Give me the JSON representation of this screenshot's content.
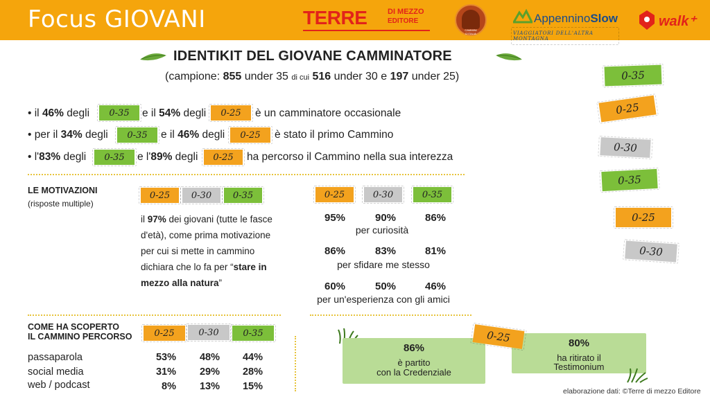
{
  "header": {
    "title": "Focus GIOVANI",
    "logos": {
      "terre": {
        "big": "TERRE",
        "small1": "DI MEZZO",
        "small2": "EDITORE"
      },
      "cammini": "CAMMINI D'ITALIA",
      "appennino": {
        "name_a": "Appennino",
        "name_b": "Slow",
        "tag": "VIAGGIATORI DELL'ALTRA MONTAGNA"
      },
      "walk": "walk⁺"
    }
  },
  "title": "IDENTIKIT DEL GIOVANE CAMMINATORE",
  "subtitle": {
    "a": "(campione: ",
    "n1": "855",
    "b": " under 35 ",
    "c": "di cui",
    "n2": "516",
    "d": " under 30 e ",
    "n3": "197",
    "e": " under 25)"
  },
  "bullets": [
    {
      "p1": "• il ",
      "v1": "46%",
      "p2": "  degli",
      "tag1": "0-35",
      "p3": "e il ",
      "v2": "54%",
      "p4": " degli",
      "tag2": "0-25",
      "p5": "è un camminatore occasionale"
    },
    {
      "p1": "• per il ",
      "v1": "34%",
      "p2": "  degli",
      "tag1": "0-35",
      "p3": "e il ",
      "v2": "46%",
      "p4": " degli",
      "tag2": "0-25",
      "p5": "è stato il primo Cammino"
    },
    {
      "p1": "• l'",
      "v1": "83%",
      "p2": "  degli",
      "tag1": "0-35",
      "p3": "e l'",
      "v2": "89%",
      "p4": " degli",
      "tag2": "0-25",
      "p5": "ha percorso il Cammino nella sua interezza"
    }
  ],
  "age_tags": {
    "t25": "0-25",
    "t30": "0-30",
    "t35": "0-35"
  },
  "motivazioni": {
    "heading": "LE MOTIVAZIONI",
    "sub": "(risposte multiple)",
    "text_a": "il ",
    "text_b": "97%",
    "text_c": " dei giovani (tutte le fasce d'età), come prima motivazione per cui si mette in cammino dichiara che lo fa per “",
    "text_d": "stare in mezzo alla natura",
    "text_e": "”",
    "rows": [
      {
        "values": [
          "95%",
          "90%",
          "86%"
        ],
        "label": "per curiosità"
      },
      {
        "values": [
          "86%",
          "83%",
          "81%"
        ],
        "label": "per sfidare me stesso"
      },
      {
        "values": [
          "60%",
          "50%",
          "46%"
        ],
        "label": "per un'esperienza con gli amici"
      }
    ]
  },
  "scoperta": {
    "heading_1": "COME HA SCOPERTO",
    "heading_2": "IL CAMMINO PERCORSO",
    "rows": [
      {
        "label": "passaparola",
        "values": [
          "53%",
          "48%",
          "44%"
        ]
      },
      {
        "label": "social media",
        "values": [
          "31%",
          "29%",
          "28%"
        ]
      },
      {
        "label": "web / podcast",
        "values": [
          "8%",
          "13%",
          "15%"
        ]
      }
    ]
  },
  "boxes": [
    {
      "pct": "86%",
      "line1": "è partito",
      "line2": "con la Credenziale"
    },
    {
      "pct": "80%",
      "line1": "ha ritirato il",
      "line2": "Testimonium"
    }
  ],
  "box_tag": "0-25",
  "side_tags": [
    "0-35",
    "0-25",
    "0-30",
    "0-35",
    "0-25",
    "0-30"
  ],
  "credit": "elaborazione dati: ©Terre di mezzo Editore",
  "colors": {
    "orange": "#f5a50c",
    "green": "#7cbf3a",
    "grey": "#c8c8c8",
    "light_green": "#b9dc96",
    "red": "#e2231a"
  }
}
